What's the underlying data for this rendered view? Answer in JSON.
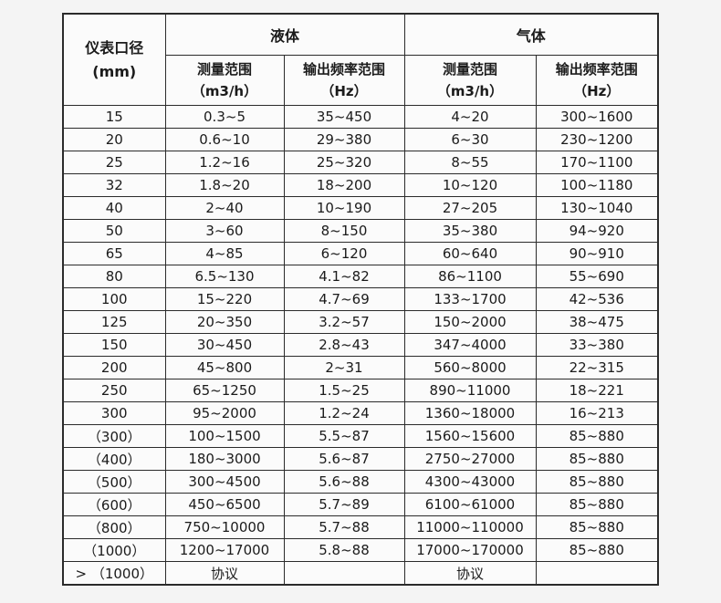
{
  "page": {
    "background_color": "#f4f4f4",
    "cell_background_color": "#fbfbfb",
    "border_color": "#2b2b2b",
    "text_color": "#1b1b1b"
  },
  "table": {
    "corner_header": {
      "line1": "仪表口径",
      "line2": "(mm)"
    },
    "groups": [
      {
        "label": "液体"
      },
      {
        "label": "气体"
      }
    ],
    "subheaders": [
      {
        "line1": "测量范围",
        "line2": "（m3/h）"
      },
      {
        "line1": "输出频率范围",
        "line2": "（Hz）"
      },
      {
        "line1": "测量范围",
        "line2": "（m3/h）"
      },
      {
        "line1": "输出频率范围",
        "line2": "（Hz）"
      }
    ],
    "rows": [
      [
        "15",
        "0.3~5",
        "35~450",
        "4~20",
        "300~1600"
      ],
      [
        "20",
        "0.6~10",
        "29~380",
        "6~30",
        "230~1200"
      ],
      [
        "25",
        "1.2~16",
        "25~320",
        "8~55",
        "170~1100"
      ],
      [
        "32",
        "1.8~20",
        "18~200",
        "10~120",
        "100~1180"
      ],
      [
        "40",
        "2~40",
        "10~190",
        "27~205",
        "130~1040"
      ],
      [
        "50",
        "3~60",
        "8~150",
        "35~380",
        "94~920"
      ],
      [
        "65",
        "4~85",
        "6~120",
        "60~640",
        "90~910"
      ],
      [
        "80",
        "6.5~130",
        "4.1~82",
        "86~1100",
        "55~690"
      ],
      [
        "100",
        "15~220",
        "4.7~69",
        "133~1700",
        "42~536"
      ],
      [
        "125",
        "20~350",
        "3.2~57",
        "150~2000",
        "38~475"
      ],
      [
        "150",
        "30~450",
        "2.8~43",
        "347~4000",
        "33~380"
      ],
      [
        "200",
        "45~800",
        "2~31",
        "560~8000",
        "22~315"
      ],
      [
        "250",
        "65~1250",
        "1.5~25",
        "890~11000",
        "18~221"
      ],
      [
        "300",
        "95~2000",
        "1.2~24",
        "1360~18000",
        "16~213"
      ],
      [
        "（300）",
        "100~1500",
        "5.5~87",
        "1560~15600",
        "85~880"
      ],
      [
        "（400）",
        "180~3000",
        "5.6~87",
        "2750~27000",
        "85~880"
      ],
      [
        "（500）",
        "300~4500",
        "5.6~88",
        "4300~43000",
        "85~880"
      ],
      [
        "（600）",
        "450~6500",
        "5.7~89",
        "6100~61000",
        "85~880"
      ],
      [
        "（800）",
        "750~10000",
        "5.7~88",
        "11000~110000",
        "85~880"
      ],
      [
        "（1000）",
        "1200~17000",
        "5.8~88",
        "17000~170000",
        "85~880"
      ],
      [
        "> （1000）",
        "协议",
        "",
        "协议",
        ""
      ]
    ]
  }
}
